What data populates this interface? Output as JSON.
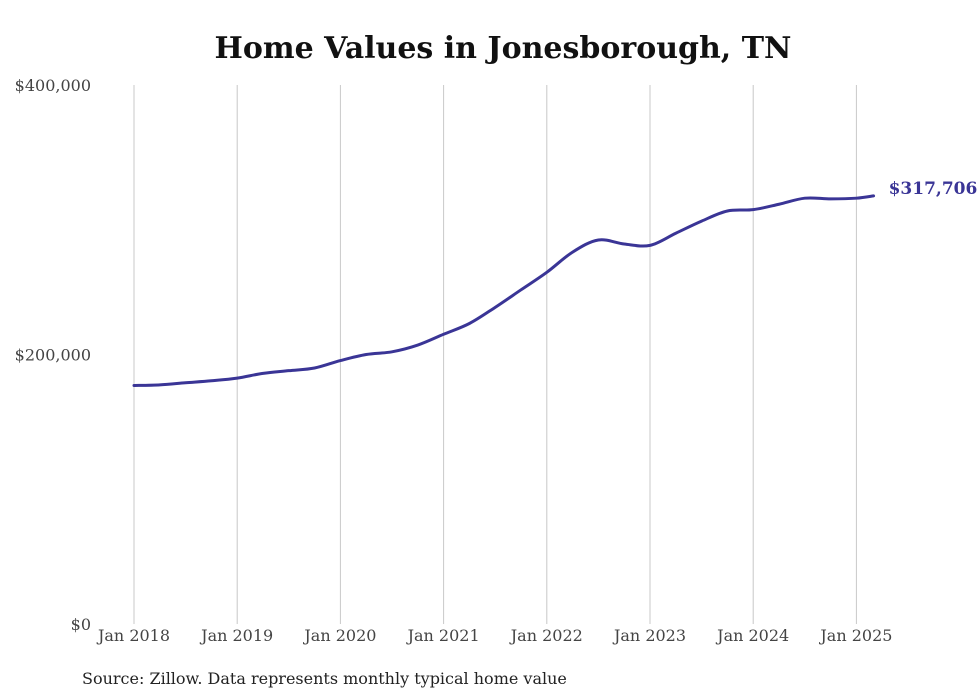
{
  "chart_data": {
    "type": "line",
    "title": "Home Values in Jonesborough, TN",
    "xlabel": "",
    "ylabel": "",
    "ylim": [
      0,
      400000
    ],
    "y_ticks": [
      {
        "value": 0,
        "label": "$0"
      },
      {
        "value": 200000,
        "label": "$200,000"
      },
      {
        "value": 400000,
        "label": "$400,000"
      }
    ],
    "x_range": [
      "2018-01",
      "2025-03"
    ],
    "x_ticks": [
      {
        "date": "2018-01",
        "label": "Jan 2018"
      },
      {
        "date": "2019-01",
        "label": "Jan 2019"
      },
      {
        "date": "2020-01",
        "label": "Jan 2020"
      },
      {
        "date": "2021-01",
        "label": "Jan 2021"
      },
      {
        "date": "2022-01",
        "label": "Jan 2022"
      },
      {
        "date": "2023-01",
        "label": "Jan 2023"
      },
      {
        "date": "2024-01",
        "label": "Jan 2024"
      },
      {
        "date": "2025-01",
        "label": "Jan 2025"
      }
    ],
    "grid": "vertical",
    "series": [
      {
        "color": "#3a3596",
        "points": [
          {
            "x": "2018-01",
            "y": 177000
          },
          {
            "x": "2018-04",
            "y": 177500
          },
          {
            "x": "2018-07",
            "y": 179000
          },
          {
            "x": "2018-10",
            "y": 180500
          },
          {
            "x": "2019-01",
            "y": 182500
          },
          {
            "x": "2019-04",
            "y": 186000
          },
          {
            "x": "2019-07",
            "y": 188000
          },
          {
            "x": "2019-10",
            "y": 190000
          },
          {
            "x": "2020-01",
            "y": 195500
          },
          {
            "x": "2020-04",
            "y": 200000
          },
          {
            "x": "2020-07",
            "y": 202000
          },
          {
            "x": "2020-10",
            "y": 207000
          },
          {
            "x": "2021-01",
            "y": 215000
          },
          {
            "x": "2021-04",
            "y": 223000
          },
          {
            "x": "2021-07",
            "y": 235000
          },
          {
            "x": "2021-10",
            "y": 248000
          },
          {
            "x": "2022-01",
            "y": 261000
          },
          {
            "x": "2022-04",
            "y": 276000
          },
          {
            "x": "2022-07",
            "y": 285000
          },
          {
            "x": "2022-10",
            "y": 282000
          },
          {
            "x": "2023-01",
            "y": 281000
          },
          {
            "x": "2023-04",
            "y": 290000
          },
          {
            "x": "2023-07",
            "y": 299000
          },
          {
            "x": "2023-10",
            "y": 306500
          },
          {
            "x": "2024-01",
            "y": 307500
          },
          {
            "x": "2024-04",
            "y": 311500
          },
          {
            "x": "2024-07",
            "y": 316000
          },
          {
            "x": "2024-10",
            "y": 315500
          },
          {
            "x": "2025-01",
            "y": 316000
          },
          {
            "x": "2025-03",
            "y": 317706
          }
        ]
      }
    ],
    "end_label": "$317,706",
    "source_note": "Source: Zillow. Data represents monthly typical home value"
  }
}
